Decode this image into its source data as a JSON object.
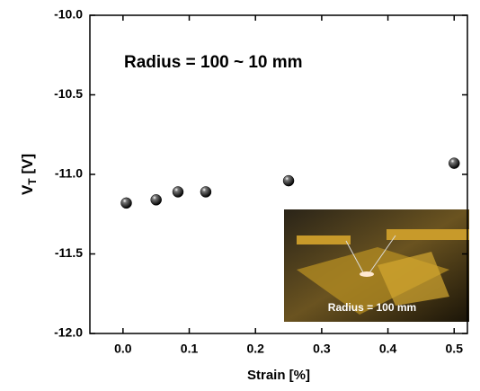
{
  "chart_data": {
    "type": "scatter",
    "ylabel": {
      "main": "V",
      "sub": "T",
      "unit": " [V]"
    },
    "xlabel": "Strain [%]",
    "annotation": "Radius = 100 ~ 10 mm",
    "inset_label": "Radius = 100 mm",
    "x": [
      0.005,
      0.05,
      0.083,
      0.125,
      0.25,
      0.5
    ],
    "values": [
      -11.18,
      -11.16,
      -11.11,
      -11.11,
      -11.04,
      -10.93
    ],
    "color": "#000000",
    "xlim": [
      -0.05,
      0.52
    ],
    "ylim": [
      -12,
      -10
    ],
    "xticks": [
      {
        "value": 0,
        "label": "0.0"
      },
      0.1,
      0.2,
      0.3,
      0.4,
      0.5
    ],
    "yticks": [
      {
        "value": -10,
        "label": "-10.0"
      },
      -10.5,
      {
        "value": -11,
        "label": "-11.0"
      },
      -11.5,
      {
        "value": -12,
        "label": "-12.0"
      }
    ],
    "grid": false
  }
}
